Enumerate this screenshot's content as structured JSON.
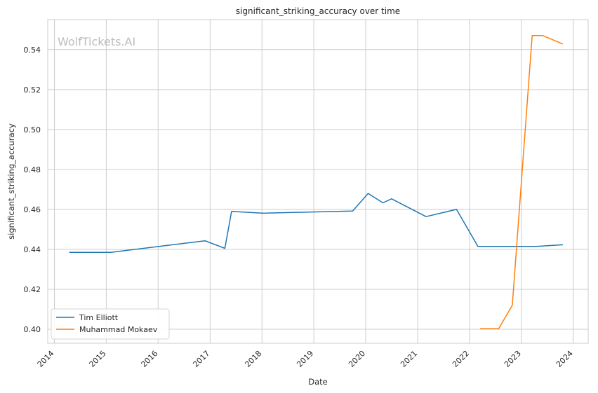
{
  "chart_data": {
    "type": "line",
    "title": "significant_striking_accuracy over time",
    "xlabel": "Date",
    "ylabel": "significant_striking_accuracy",
    "watermark": "WolfTickets.AI",
    "x_ticks": [
      "2014",
      "2015",
      "2016",
      "2017",
      "2018",
      "2019",
      "2020",
      "2021",
      "2022",
      "2023",
      "2024"
    ],
    "y_ticks": [
      "0.40",
      "0.42",
      "0.44",
      "0.46",
      "0.48",
      "0.50",
      "0.52",
      "0.54"
    ],
    "xlim": [
      "2013-11-15",
      "2024-04-15"
    ],
    "ylim": [
      0.393,
      0.555
    ],
    "grid": true,
    "legend_position": "bottom-left",
    "series": [
      {
        "name": "Tim Elliott",
        "color": "#1f77b4",
        "points": [
          [
            "2014-04-15",
            0.4385
          ],
          [
            "2015-02-01",
            0.4385
          ],
          [
            "2016-11-26",
            0.4443
          ],
          [
            "2017-04-15",
            0.4405
          ],
          [
            "2017-06-01",
            0.459
          ],
          [
            "2018-01-01",
            0.4581
          ],
          [
            "2019-10-01",
            0.4592
          ],
          [
            "2020-01-18",
            0.468
          ],
          [
            "2020-05-01",
            0.4633
          ],
          [
            "2020-07-01",
            0.4653
          ],
          [
            "2021-03-01",
            0.4564
          ],
          [
            "2021-10-01",
            0.46
          ],
          [
            "2022-03-01",
            0.4415
          ],
          [
            "2023-04-15",
            0.4415
          ],
          [
            "2023-10-20",
            0.4423
          ]
        ]
      },
      {
        "name": "Muhammad Mokaev",
        "color": "#ff7f0e",
        "points": [
          [
            "2022-03-15",
            0.4003
          ],
          [
            "2022-07-25",
            0.4003
          ],
          [
            "2022-10-29",
            0.412
          ],
          [
            "2023-03-18",
            0.547
          ],
          [
            "2023-06-01",
            0.547
          ],
          [
            "2023-10-20",
            0.5428
          ]
        ]
      }
    ]
  }
}
